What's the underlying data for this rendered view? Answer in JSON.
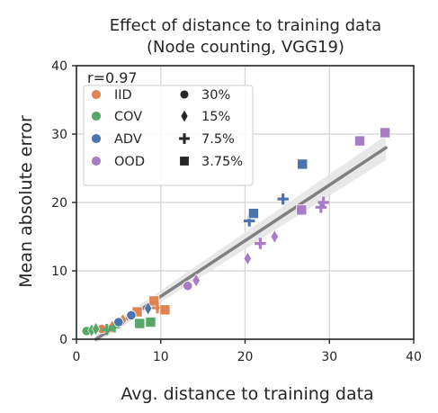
{
  "chart_data": {
    "type": "scatter",
    "title": [
      "Effect of distance to training data",
      "(Node counting, VGG19)"
    ],
    "xlabel": "Avg. distance to training data",
    "ylabel": "Mean absolute error",
    "xlim": [
      0,
      40
    ],
    "ylim": [
      0,
      40
    ],
    "xticks": [
      0,
      10,
      20,
      30,
      40
    ],
    "yticks": [
      0,
      10,
      20,
      30,
      40
    ],
    "grid": true,
    "legend_position": "upper-left",
    "annotation": "r=0.97",
    "colors": {
      "IID": "#dd8452",
      "COV": "#55a868",
      "ADV": "#4c72b0",
      "OOD": "#a77dc6",
      "trend": "#808080",
      "band": "#e6e6e6"
    },
    "legend": {
      "hue": [
        {
          "label": "IID",
          "key": "IID"
        },
        {
          "label": "COV",
          "key": "COV"
        },
        {
          "label": "ADV",
          "key": "ADV"
        },
        {
          "label": "OOD",
          "key": "OOD"
        }
      ],
      "style": [
        {
          "label": "30%",
          "marker": "circle"
        },
        {
          "label": "15%",
          "marker": "diamond"
        },
        {
          "label": "7.5%",
          "marker": "plus"
        },
        {
          "label": "3.75%",
          "marker": "square"
        }
      ]
    },
    "trend_line": {
      "x": [
        2.3,
        36.7
      ],
      "y": [
        0.0,
        28.0
      ],
      "band_width_start": 0.6,
      "band_width_end": 1.8
    },
    "series": [
      {
        "name": "IID",
        "points": [
          {
            "x": 3.0,
            "y": 1.5,
            "marker": "circle"
          },
          {
            "x": 4.2,
            "y": 1.8,
            "marker": "diamond"
          },
          {
            "x": 5.5,
            "y": 2.8,
            "marker": "diamond"
          },
          {
            "x": 7.2,
            "y": 4.0,
            "marker": "square"
          },
          {
            "x": 9.2,
            "y": 5.6,
            "marker": "square"
          },
          {
            "x": 9.6,
            "y": 4.6,
            "marker": "plus"
          },
          {
            "x": 10.5,
            "y": 4.3,
            "marker": "square"
          }
        ]
      },
      {
        "name": "COV",
        "points": [
          {
            "x": 1.2,
            "y": 1.2,
            "marker": "circle"
          },
          {
            "x": 1.8,
            "y": 1.3,
            "marker": "diamond"
          },
          {
            "x": 2.3,
            "y": 1.5,
            "marker": "diamond"
          },
          {
            "x": 3.6,
            "y": 1.4,
            "marker": "plus"
          },
          {
            "x": 4.5,
            "y": 1.8,
            "marker": "plus"
          },
          {
            "x": 7.5,
            "y": 2.3,
            "marker": "square"
          },
          {
            "x": 8.8,
            "y": 2.5,
            "marker": "square"
          }
        ]
      },
      {
        "name": "ADV",
        "points": [
          {
            "x": 5.0,
            "y": 2.5,
            "marker": "circle"
          },
          {
            "x": 6.5,
            "y": 3.5,
            "marker": "circle"
          },
          {
            "x": 8.5,
            "y": 4.5,
            "marker": "diamond"
          },
          {
            "x": 20.5,
            "y": 17.3,
            "marker": "plus"
          },
          {
            "x": 21.0,
            "y": 18.4,
            "marker": "square"
          },
          {
            "x": 24.5,
            "y": 20.5,
            "marker": "plus"
          },
          {
            "x": 26.8,
            "y": 25.6,
            "marker": "square"
          }
        ]
      },
      {
        "name": "OOD",
        "points": [
          {
            "x": 13.2,
            "y": 7.8,
            "marker": "circle"
          },
          {
            "x": 14.2,
            "y": 8.6,
            "marker": "diamond"
          },
          {
            "x": 20.3,
            "y": 11.8,
            "marker": "diamond"
          },
          {
            "x": 21.8,
            "y": 14.0,
            "marker": "plus"
          },
          {
            "x": 23.5,
            "y": 15.0,
            "marker": "diamond"
          },
          {
            "x": 26.7,
            "y": 18.9,
            "marker": "square"
          },
          {
            "x": 29.0,
            "y": 19.3,
            "marker": "plus"
          },
          {
            "x": 29.3,
            "y": 20.0,
            "marker": "plus"
          },
          {
            "x": 33.6,
            "y": 29.0,
            "marker": "square"
          },
          {
            "x": 36.6,
            "y": 30.2,
            "marker": "square"
          }
        ]
      }
    ]
  }
}
